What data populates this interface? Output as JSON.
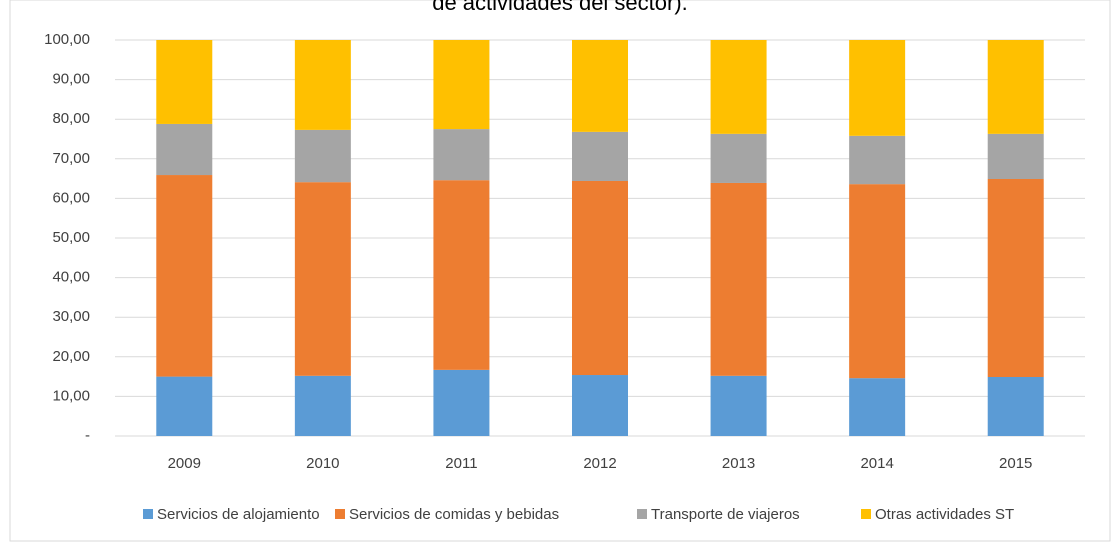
{
  "chart_data": {
    "type": "stacked_bar",
    "title": "de actividades del sector).",
    "categories": [
      "2009",
      "2010",
      "2011",
      "2012",
      "2013",
      "2014",
      "2015"
    ],
    "series": [
      {
        "name": "Servicios de alojamiento",
        "color": "#5b9bd5",
        "values": [
          15.0,
          15.2,
          16.7,
          15.4,
          15.2,
          14.6,
          14.9
        ]
      },
      {
        "name": "Servicios de comidas y bebidas",
        "color": "#ed7d31",
        "values": [
          50.9,
          48.9,
          47.9,
          49.0,
          48.7,
          49.0,
          50.0
        ]
      },
      {
        "name": "Transporte de viajeros",
        "color": "#a5a5a5",
        "values": [
          12.9,
          13.2,
          12.9,
          12.4,
          12.4,
          12.2,
          11.4
        ]
      },
      {
        "name": "Otras actividades ST",
        "color": "#ffc000",
        "values": [
          21.2,
          22.7,
          22.5,
          23.2,
          23.7,
          24.2,
          23.7
        ]
      }
    ],
    "ylim": [
      0,
      100
    ],
    "yticks": [
      {
        "value": 0,
        "label": "-"
      },
      {
        "value": 10,
        "label": "10,00"
      },
      {
        "value": 20,
        "label": "20,00"
      },
      {
        "value": 30,
        "label": "30,00"
      },
      {
        "value": 40,
        "label": "40,00"
      },
      {
        "value": 50,
        "label": "50,00"
      },
      {
        "value": 60,
        "label": "60,00"
      },
      {
        "value": 70,
        "label": "70,00"
      },
      {
        "value": 80,
        "label": "80,00"
      },
      {
        "value": 90,
        "label": "90,00"
      },
      {
        "value": 100,
        "label": "100,00"
      }
    ],
    "grid": true,
    "legend": "bottom"
  }
}
